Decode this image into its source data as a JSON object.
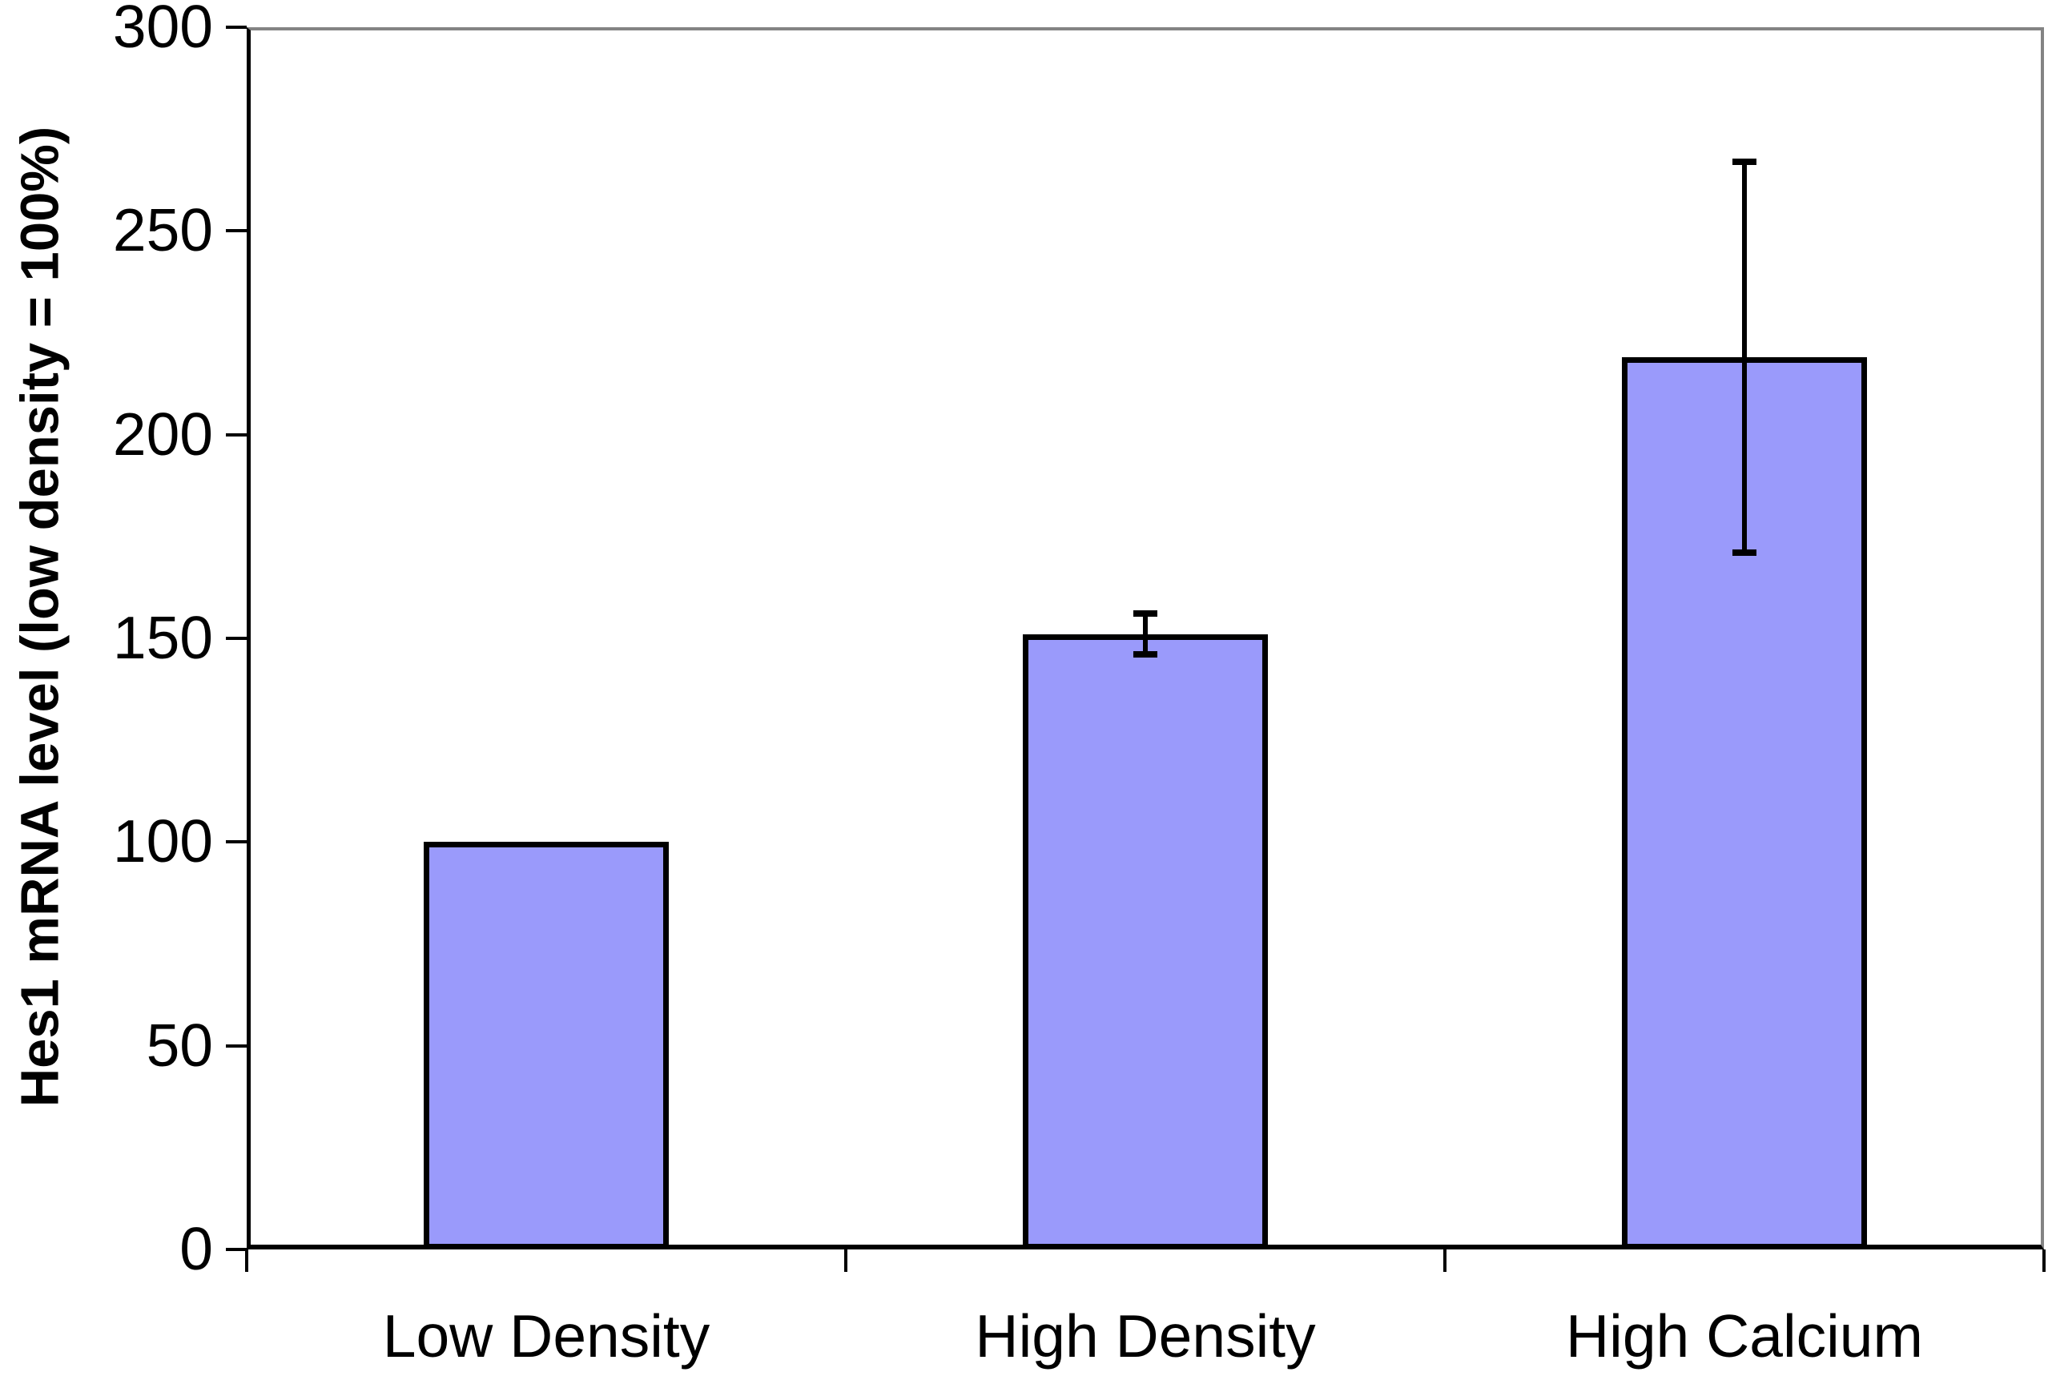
{
  "chart_data": {
    "type": "bar",
    "title": "",
    "xlabel": "",
    "ylabel": "Hes1 mRNA level (low density = 100%)",
    "categories": [
      "Low Density",
      "High Density",
      "High Calcium"
    ],
    "values": [
      100,
      151,
      219
    ],
    "error_bars": [
      0,
      5,
      48
    ],
    "y_ticks": [
      0,
      50,
      100,
      150,
      200,
      250,
      300
    ],
    "ylim": [
      0,
      300
    ],
    "grid": false,
    "legend": "none",
    "bar_fill_color": "#9A9AFB",
    "bar_border_color": "#000000",
    "axis_color": "#000000",
    "plot_border_color": "#848484",
    "background_color": "#ffffff"
  }
}
